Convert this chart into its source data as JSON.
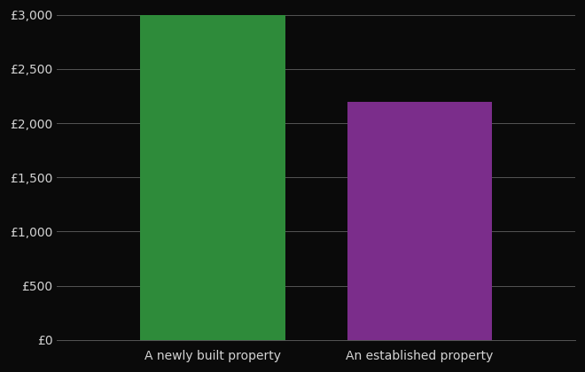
{
  "categories": [
    "A newly built property",
    "An established property"
  ],
  "values": [
    2998,
    2197
  ],
  "bar_colors": [
    "#2e8b3a",
    "#7b2d8b"
  ],
  "background_color": "#0a0a0a",
  "text_color": "#d4d4d4",
  "grid_color": "#555555",
  "ylim": [
    0,
    3000
  ],
  "ytick_interval": 500,
  "bar_width": 0.28,
  "x_positions": [
    0.3,
    0.7
  ],
  "xlim": [
    0,
    1
  ],
  "figsize": [
    6.6,
    4.2
  ],
  "dpi": 100,
  "tick_fontsize": 10,
  "xlabel_fontsize": 10
}
